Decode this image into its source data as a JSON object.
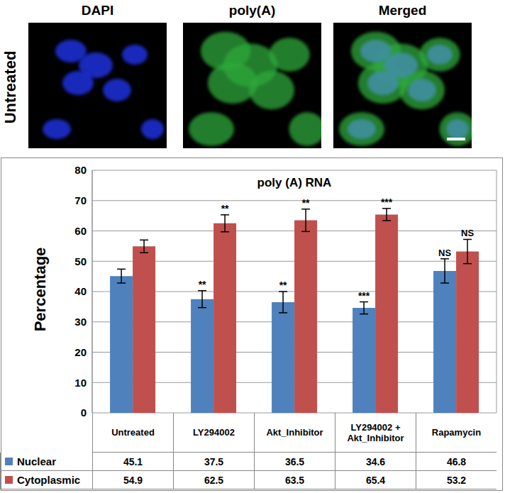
{
  "panels": {
    "column_labels": [
      "DAPI",
      "poly(A)",
      "Merged"
    ],
    "row_label": "Untreated"
  },
  "chart_data": {
    "type": "bar",
    "title": "poly (A) RNA",
    "y_label": "Percentage",
    "categories": [
      "Untreated",
      "LY294002",
      "Akt_Inhibitor",
      "LY294002 + Akt_Inhibitor",
      "Rapamycin"
    ],
    "series": [
      {
        "name": "Nuclear",
        "color": "#4f81bd",
        "values": [
          45.1,
          37.5,
          36.5,
          34.6,
          46.8
        ],
        "errors": [
          2.3,
          2.8,
          3.5,
          2.0,
          4.0
        ],
        "significance": [
          null,
          "**",
          "**",
          "***",
          "NS"
        ]
      },
      {
        "name": "Cytoplasmic",
        "color": "#c0504d",
        "values": [
          54.9,
          62.5,
          63.5,
          65.4,
          53.2
        ],
        "errors": [
          2.1,
          2.8,
          3.7,
          2.0,
          4.0
        ],
        "significance": [
          null,
          "**",
          "**",
          "***",
          "NS"
        ]
      }
    ],
    "ylim": [
      0,
      80
    ],
    "yticks": [
      0,
      10,
      20,
      30,
      40,
      50,
      60,
      70,
      80
    ],
    "grid": true
  }
}
